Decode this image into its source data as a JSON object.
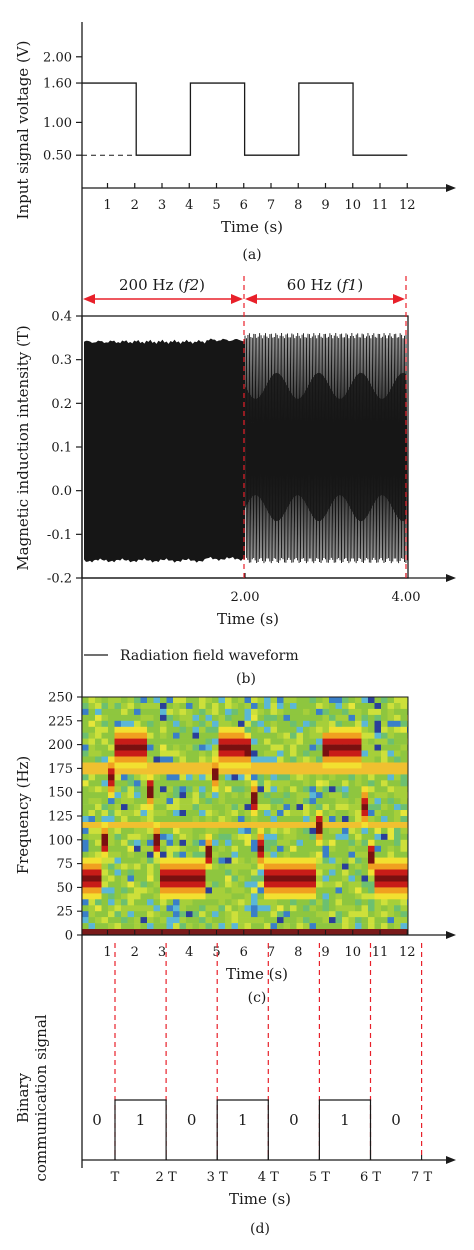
{
  "colors": {
    "axis": "#1a1a1a",
    "marker": "#e8202a",
    "waveform": "#161616"
  },
  "chart_data": [
    {
      "type": "line",
      "panel": "a",
      "caption": "(a)",
      "xlabel": "Time (s)",
      "ylabel": "Input signal voltage (V)",
      "xlim": [
        0,
        12.6
      ],
      "ylim": [
        0,
        2.5
      ],
      "x_ticks": [
        "1",
        "2",
        "3",
        "4",
        "5",
        "6",
        "7",
        "8",
        "9",
        "10",
        "11",
        "12"
      ],
      "y_ticks": [
        {
          "v": 0.5,
          "label": "0.50"
        },
        {
          "v": 1.0,
          "label": "1.00"
        },
        {
          "v": 1.6,
          "label": "1.60"
        },
        {
          "v": 2.0,
          "label": "2.00"
        }
      ],
      "x": [
        0,
        2,
        2,
        4,
        4,
        6,
        6,
        8,
        8,
        10,
        10,
        12
      ],
      "y": [
        1.6,
        1.6,
        0.5,
        0.5,
        1.6,
        1.6,
        0.5,
        0.5,
        1.6,
        1.6,
        0.5,
        0.5
      ],
      "dashed_reference": {
        "y": 0.5,
        "x": [
          0,
          2
        ]
      }
    },
    {
      "type": "line",
      "panel": "b",
      "caption": "(b)",
      "xlabel": "Time (s)",
      "ylabel": "Magnetic induction intensity (T)",
      "xlim": [
        0,
        4
      ],
      "ylim": [
        -0.2,
        0.4
      ],
      "x_ticks": [
        {
          "v": 2.0,
          "label": "2.00"
        },
        {
          "v": 4.0,
          "label": "4.00"
        }
      ],
      "y_ticks": [
        {
          "v": -0.2,
          "label": "-0.2"
        },
        {
          "v": -0.1,
          "label": "-0.1"
        },
        {
          "v": 0.0,
          "label": "0.0"
        },
        {
          "v": 0.1,
          "label": "0.1"
        },
        {
          "v": 0.2,
          "label": "0.2"
        },
        {
          "v": 0.3,
          "label": "0.3"
        },
        {
          "v": 0.4,
          "label": "0.4"
        }
      ],
      "segments": [
        {
          "x": [
            0,
            2
          ],
          "frequency_hz": 200,
          "min": -0.16,
          "max": 0.345
        },
        {
          "x": [
            2,
            4
          ],
          "frequency_hz": 60,
          "min": -0.16,
          "max": 0.355
        }
      ],
      "annotations": [
        {
          "text_main": "200 Hz (",
          "text_sym": "f2",
          "text_end": ")",
          "x": [
            0,
            2
          ]
        },
        {
          "text_main": "60 Hz (",
          "text_sym": "f1",
          "text_end": ")",
          "x": [
            2,
            4
          ]
        }
      ],
      "legend": "Radiation field waveform"
    },
    {
      "type": "heatmap",
      "panel": "c",
      "caption": "(c)",
      "xlabel": "Time (s)",
      "ylabel": "Frequency (Hz)",
      "xlim": [
        0,
        12.6
      ],
      "ylim": [
        0,
        250
      ],
      "x_ticks": [
        "1",
        "2",
        "3",
        "4",
        "5",
        "6",
        "7",
        "8",
        "9",
        "10",
        "11",
        "12"
      ],
      "y_ticks": [
        "0",
        "25",
        "50",
        "75",
        "100",
        "125",
        "150",
        "175",
        "200",
        "225",
        "250"
      ],
      "dominant_frequency_hz": {
        "x": [
          0,
          0.7,
          1.2,
          2.3,
          2.8,
          3.0,
          4.0,
          4.6,
          5.0,
          6.1,
          6.6,
          6.8,
          8.0,
          8.6,
          9.0,
          10.2,
          10.6,
          10.9,
          12.0
        ],
        "y": [
          60,
          60,
          198,
          198,
          90,
          60,
          60,
          60,
          198,
          198,
          90,
          60,
          60,
          60,
          198,
          198,
          90,
          60,
          60
        ]
      },
      "constant_bands_hz": [
        175,
        115
      ]
    },
    {
      "type": "line",
      "panel": "d",
      "caption": "(d)",
      "xlabel": "Time (s)",
      "ylabel_line1": "Binary",
      "ylabel_line2": "communication signal",
      "x_ticks": [
        {
          "v": 1,
          "label": "T"
        },
        {
          "v": 2,
          "label": "2 T"
        },
        {
          "v": 3,
          "label": "3 T"
        },
        {
          "v": 4,
          "label": "4 T"
        },
        {
          "v": 5,
          "label": "5 T"
        },
        {
          "v": 6,
          "label": "6 T"
        },
        {
          "v": 7,
          "label": "7 T"
        }
      ],
      "bits": [
        {
          "x": [
            0,
            1
          ],
          "value": 0,
          "label": "0"
        },
        {
          "x": [
            1,
            2
          ],
          "value": 1,
          "label": "1"
        },
        {
          "x": [
            2,
            3
          ],
          "value": 0,
          "label": "0"
        },
        {
          "x": [
            3,
            4
          ],
          "value": 1,
          "label": "1"
        },
        {
          "x": [
            4,
            5
          ],
          "value": 0,
          "label": "0"
        },
        {
          "x": [
            5,
            6
          ],
          "value": 1,
          "label": "1"
        },
        {
          "x": [
            6,
            7
          ],
          "value": 0,
          "label": "0"
        }
      ]
    }
  ]
}
